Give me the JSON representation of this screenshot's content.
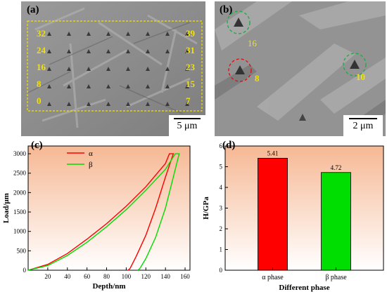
{
  "panels": {
    "a": {
      "label": "(a)",
      "scale_bar": "5 μm",
      "left_labels": [
        "32",
        "24",
        "16",
        "8",
        "0"
      ],
      "right_labels": [
        "39",
        "31",
        "23",
        "15",
        "7"
      ]
    },
    "b": {
      "label": "(b)",
      "scale_bar": "2 μm",
      "indent_labels": [
        "16",
        "8",
        "10"
      ]
    },
    "c": {
      "label": "(c)"
    },
    "d": {
      "label": "(d)"
    }
  },
  "colors": {
    "alpha": "#ff0000",
    "beta": "#00dd00",
    "label_yellow": "#f2e200",
    "chart_bg_top": "#f6b894",
    "chart_bg_bottom": "#ffffff"
  },
  "chart_data": [
    {
      "type": "line",
      "xlabel": "Depth/nm",
      "ylabel": "Load/μm",
      "xlim": [
        0,
        165
      ],
      "ylim": [
        0,
        3200
      ],
      "xticks": [
        20,
        40,
        60,
        80,
        100,
        120,
        140,
        160
      ],
      "yticks": [
        0,
        500,
        1000,
        1500,
        2000,
        2500,
        3000
      ],
      "legend": "top-left",
      "series": [
        {
          "name": "α",
          "loading": [
            [
              0,
              0
            ],
            [
              20,
              150
            ],
            [
              40,
              430
            ],
            [
              60,
              800
            ],
            [
              80,
              1200
            ],
            [
              100,
              1650
            ],
            [
              120,
              2150
            ],
            [
              140,
              2750
            ],
            [
              144,
              3000
            ]
          ],
          "hold": [
            [
              144,
              3000
            ],
            [
              148,
              3000
            ]
          ],
          "unloading": [
            [
              148,
              3000
            ],
            [
              140,
              2400
            ],
            [
              130,
              1600
            ],
            [
              120,
              900
            ],
            [
              110,
              350
            ],
            [
              104,
              50
            ],
            [
              102,
              0
            ]
          ]
        },
        {
          "name": "β",
          "loading": [
            [
              0,
              0
            ],
            [
              20,
              120
            ],
            [
              40,
              380
            ],
            [
              60,
              720
            ],
            [
              80,
              1120
            ],
            [
              100,
              1560
            ],
            [
              120,
              2060
            ],
            [
              140,
              2600
            ],
            [
              150,
              3000
            ]
          ],
          "hold": [
            [
              150,
              3000
            ],
            [
              154,
              3000
            ]
          ],
          "unloading": [
            [
              154,
              3000
            ],
            [
              148,
              2400
            ],
            [
              140,
              1600
            ],
            [
              130,
              850
            ],
            [
              120,
              300
            ],
            [
              114,
              50
            ],
            [
              112,
              0
            ]
          ]
        }
      ]
    },
    {
      "type": "bar",
      "categories": [
        "α phase",
        "β phase"
      ],
      "values": [
        5.41,
        4.72
      ],
      "data_labels": [
        "5.41",
        "4.72"
      ],
      "xlabel": "Different phase",
      "ylabel": "H/GPa",
      "ylim": [
        0,
        6
      ],
      "yticks": [
        0,
        1,
        2,
        3,
        4,
        5,
        6
      ]
    }
  ]
}
